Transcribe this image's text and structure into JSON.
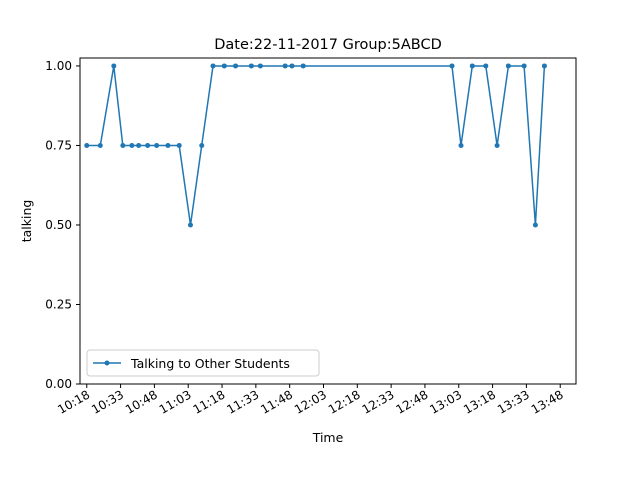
{
  "chart_data": {
    "type": "line",
    "title": "Date:22-11-2017  Group:5ABCD",
    "xlabel": "Time",
    "ylabel": "talking",
    "x_ticks": [
      "10:18",
      "10:33",
      "10:48",
      "11:03",
      "11:18",
      "11:33",
      "11:48",
      "12:03",
      "12:18",
      "12:33",
      "12:48",
      "13:03",
      "13:18",
      "13:33",
      "13:48"
    ],
    "y_ticks": [
      "0.00",
      "0.25",
      "0.50",
      "0.75",
      "1.00"
    ],
    "ylim": [
      0,
      1.025
    ],
    "xlim": [
      "10:15",
      "13:55"
    ],
    "grid": false,
    "legend_position": "lower-left",
    "series": [
      {
        "name": "Talking to Other Students",
        "color": "#1f77b4",
        "marker": "circle",
        "points": [
          {
            "x": "10:18",
            "y": 0.75
          },
          {
            "x": "10:24",
            "y": 0.75
          },
          {
            "x": "10:30",
            "y": 1.0
          },
          {
            "x": "10:34",
            "y": 0.75
          },
          {
            "x": "10:38",
            "y": 0.75
          },
          {
            "x": "10:41",
            "y": 0.75
          },
          {
            "x": "10:45",
            "y": 0.75
          },
          {
            "x": "10:49",
            "y": 0.75
          },
          {
            "x": "10:54",
            "y": 0.75
          },
          {
            "x": "10:59",
            "y": 0.75
          },
          {
            "x": "11:04",
            "y": 0.5
          },
          {
            "x": "11:09",
            "y": 0.75
          },
          {
            "x": "11:14",
            "y": 1.0
          },
          {
            "x": "11:19",
            "y": 1.0
          },
          {
            "x": "11:24",
            "y": 1.0
          },
          {
            "x": "11:31",
            "y": 1.0
          },
          {
            "x": "11:35",
            "y": 1.0
          },
          {
            "x": "11:46",
            "y": 1.0
          },
          {
            "x": "11:49",
            "y": 1.0
          },
          {
            "x": "11:54",
            "y": 1.0
          },
          {
            "x": "13:00",
            "y": 1.0
          },
          {
            "x": "13:04",
            "y": 0.75
          },
          {
            "x": "13:09",
            "y": 1.0
          },
          {
            "x": "13:15",
            "y": 1.0
          },
          {
            "x": "13:20",
            "y": 0.75
          },
          {
            "x": "13:25",
            "y": 1.0
          },
          {
            "x": "13:32",
            "y": 1.0
          },
          {
            "x": "13:37",
            "y": 0.5
          },
          {
            "x": "13:41",
            "y": 1.0
          }
        ]
      }
    ]
  }
}
